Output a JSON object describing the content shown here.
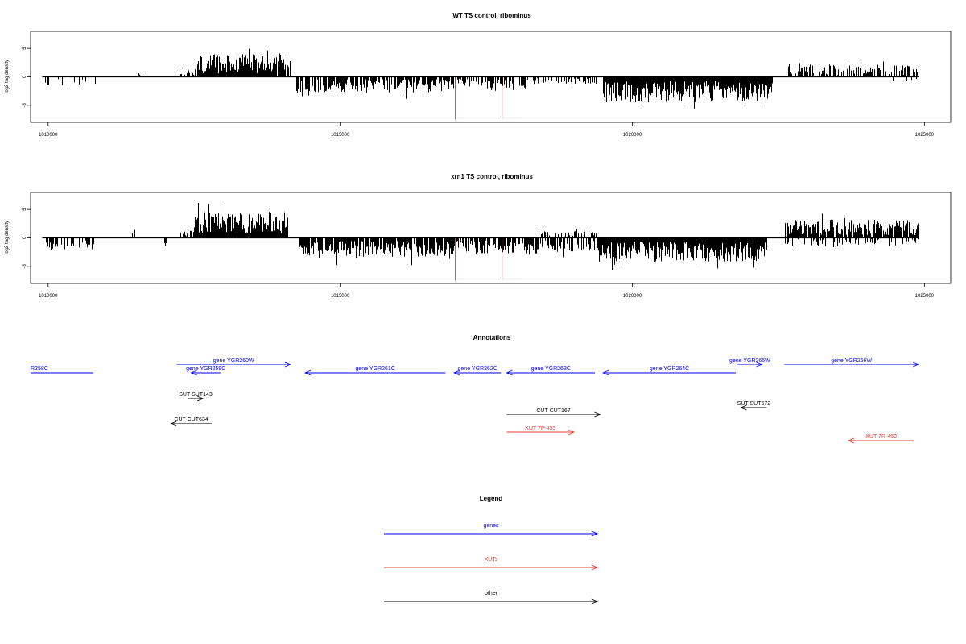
{
  "chart_data": [
    {
      "type": "bar",
      "title": "WT TS control, ribominus",
      "ylabel": "log2 tag density",
      "xlim": [
        1009700,
        1025450
      ],
      "ylim": [
        -8,
        8
      ],
      "x_ticks": [
        1010000,
        1015000,
        1020000,
        1025000
      ],
      "y_ticks": [
        -5,
        0,
        5
      ],
      "grid": false,
      "profile_segments": [
        {
          "start": 1009900,
          "end": 1010800,
          "sign": -1,
          "amp": 1.8,
          "density": 0.25
        },
        {
          "start": 1011550,
          "end": 1011650,
          "sign": 1,
          "amp": 1.0,
          "density": 0.3
        },
        {
          "start": 1012250,
          "end": 1012550,
          "sign": 1,
          "amp": 1.5,
          "density": 0.6
        },
        {
          "start": 1012550,
          "end": 1014150,
          "sign": 1,
          "amp": 4.0,
          "density": 0.95
        },
        {
          "start": 1014250,
          "end": 1016800,
          "sign": -1,
          "amp": 2.8,
          "density": 0.8
        },
        {
          "start": 1016800,
          "end": 1018300,
          "sign": -1,
          "amp": 2.0,
          "density": 0.5
        },
        {
          "start": 1018300,
          "end": 1019400,
          "sign": -1,
          "amp": 1.3,
          "density": 0.5
        },
        {
          "start": 1019500,
          "end": 1022400,
          "sign": -1,
          "amp": 4.5,
          "density": 1.0
        },
        {
          "start": 1022650,
          "end": 1024900,
          "sign": 1,
          "amp": 2.2,
          "density": 0.6
        },
        {
          "start": 1024400,
          "end": 1024900,
          "sign": -1,
          "amp": 0.8,
          "density": 0.25
        }
      ],
      "highlight_marks": [
        {
          "x": 1016970,
          "y": -7.5
        },
        {
          "x": 1017770,
          "y": -7.5
        }
      ],
      "highlight_color": "#e8382f"
    },
    {
      "type": "bar",
      "title": "xrn1 TS control, ribominus",
      "ylabel": "log2 tag density",
      "xlim": [
        1009700,
        1025450
      ],
      "ylim": [
        -8,
        8
      ],
      "x_ticks": [
        1010000,
        1015000,
        1020000,
        1025000
      ],
      "y_ticks": [
        -5,
        0,
        5
      ],
      "grid": false,
      "profile_segments": [
        {
          "start": 1009900,
          "end": 1010800,
          "sign": -1,
          "amp": 2.2,
          "density": 0.55
        },
        {
          "start": 1011400,
          "end": 1011500,
          "sign": 1,
          "amp": 1.8,
          "density": 0.4
        },
        {
          "start": 1011950,
          "end": 1012050,
          "sign": -1,
          "amp": 1.5,
          "density": 0.4
        },
        {
          "start": 1012250,
          "end": 1012500,
          "sign": 1,
          "amp": 1.5,
          "density": 0.5
        },
        {
          "start": 1012500,
          "end": 1014100,
          "sign": 1,
          "amp": 4.6,
          "density": 1.0
        },
        {
          "start": 1014300,
          "end": 1016800,
          "sign": -1,
          "amp": 3.5,
          "density": 0.9
        },
        {
          "start": 1016800,
          "end": 1018400,
          "sign": -1,
          "amp": 3.0,
          "density": 0.7
        },
        {
          "start": 1018400,
          "end": 1019400,
          "sign": 1,
          "amp": 1.2,
          "density": 0.4
        },
        {
          "start": 1018400,
          "end": 1019400,
          "sign": -1,
          "amp": 2.5,
          "density": 0.5
        },
        {
          "start": 1019400,
          "end": 1022300,
          "sign": -1,
          "amp": 4.2,
          "density": 1.0
        },
        {
          "start": 1022600,
          "end": 1024900,
          "sign": 1,
          "amp": 3.2,
          "density": 0.9
        },
        {
          "start": 1022600,
          "end": 1024900,
          "sign": -1,
          "amp": 1.5,
          "density": 0.4
        }
      ],
      "highlight_marks": [
        {
          "x": 1016970,
          "y": -7.5
        },
        {
          "x": 1017770,
          "y": -7.5
        }
      ],
      "highlight_color": "#e8382f"
    }
  ],
  "annotations": {
    "title": "Annotations",
    "features": [
      {
        "label": "R258C",
        "start": 1009700,
        "end": 1010770,
        "strand": "none",
        "row": 1,
        "color": "#0000ff",
        "label_align": "left"
      },
      {
        "label": "gene YGR260W",
        "start": 1012200,
        "end": 1014150,
        "strand": "+",
        "row": 0,
        "color": "#0000ff"
      },
      {
        "label": "gene YGR259C",
        "start": 1012450,
        "end": 1012950,
        "strand": "-",
        "row": 1,
        "color": "#0000ff"
      },
      {
        "label": "gene YGR261C",
        "start": 1014400,
        "end": 1016800,
        "strand": "-",
        "row": 1,
        "color": "#0000ff"
      },
      {
        "label": "gene YGR262C",
        "start": 1016950,
        "end": 1017750,
        "strand": "-",
        "row": 1,
        "color": "#0000ff"
      },
      {
        "label": "gene YGR263C",
        "start": 1017850,
        "end": 1019360,
        "strand": "-",
        "row": 1,
        "color": "#0000ff"
      },
      {
        "label": "gene YGR264C",
        "start": 1019500,
        "end": 1021770,
        "strand": "-",
        "row": 1,
        "color": "#0000ff"
      },
      {
        "label": "gene YGR265W",
        "start": 1021800,
        "end": 1022220,
        "strand": "+",
        "row": 0,
        "color": "#0000ff"
      },
      {
        "label": "gene YGR266W",
        "start": 1022600,
        "end": 1024900,
        "strand": "+",
        "row": 0,
        "color": "#0000ff"
      },
      {
        "label": "SUT SUT143",
        "start": 1012400,
        "end": 1012650,
        "strand": "+",
        "row": 2,
        "color": "#000000"
      },
      {
        "label": "SUT SUT572",
        "start": 1021860,
        "end": 1022300,
        "strand": "-",
        "row": 3,
        "color": "#000000"
      },
      {
        "label": "CUT CUT634",
        "start": 1012100,
        "end": 1012800,
        "strand": "-",
        "row": 4,
        "color": "#000000"
      },
      {
        "label": "CUT CUT167",
        "start": 1017850,
        "end": 1019450,
        "strand": "+",
        "row": 5,
        "color": "#000000"
      },
      {
        "label": "XUT 7F-455",
        "start": 1017850,
        "end": 1019000,
        "strand": "+",
        "row": 6,
        "color": "#e8382f"
      },
      {
        "label": "XUT 7R-469",
        "start": 1023700,
        "end": 1024820,
        "strand": "-",
        "row": 7,
        "color": "#e8382f"
      }
    ]
  },
  "legend": {
    "title": "Legend",
    "items": [
      {
        "label": "genes",
        "color": "#0000ff"
      },
      {
        "label": "XUTs",
        "color": "#e8382f"
      },
      {
        "label": "other",
        "color": "#000000"
      }
    ]
  }
}
